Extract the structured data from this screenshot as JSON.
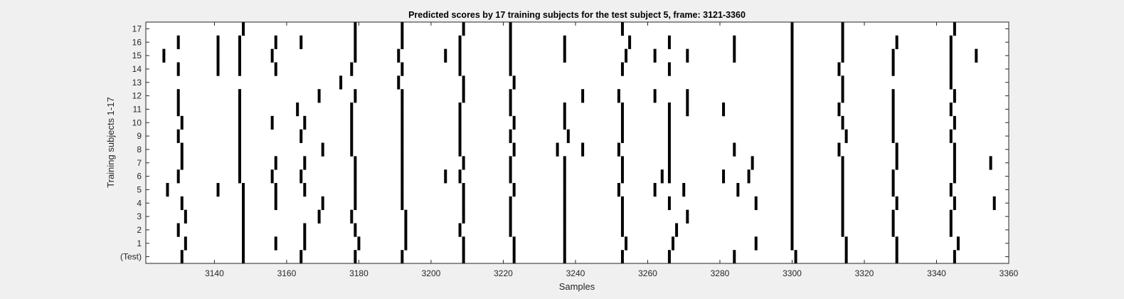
{
  "chart_data": {
    "type": "heatmap",
    "title": "Predicted scores by 17 training subjects for the test subject 5, frame: 3121-3360",
    "xlabel": "Samples",
    "ylabel": "Training subjects 1-17",
    "xlim": [
      3121,
      3360
    ],
    "x_ticks": [
      3140,
      3160,
      3180,
      3200,
      3220,
      3240,
      3260,
      3280,
      3300,
      3320,
      3340,
      3360
    ],
    "y_tick_labels": [
      "(Test)",
      "1",
      "2",
      "3",
      "4",
      "5",
      "6",
      "7",
      "8",
      "9",
      "10",
      "11",
      "12",
      "13",
      "14",
      "15",
      "16",
      "17"
    ],
    "rows": [
      {
        "label": "(Test)",
        "x": [
          3131,
          3148,
          3164,
          3179,
          3192,
          3209,
          3223,
          3237,
          3253,
          3266,
          3284,
          3301,
          3315,
          3329,
          3345
        ]
      },
      {
        "label": "1",
        "x": [
          3132,
          3148,
          3157,
          3165,
          3180,
          3193,
          3209,
          3223,
          3237,
          3254,
          3267,
          3290,
          3300,
          3315,
          3329,
          3346
        ]
      },
      {
        "label": "2",
        "x": [
          3130,
          3148,
          3165,
          3179,
          3193,
          3208,
          3222,
          3237,
          3253,
          3268,
          3300,
          3314,
          3328,
          3344
        ]
      },
      {
        "label": "3",
        "x": [
          3132,
          3148,
          3169,
          3178,
          3193,
          3209,
          3222,
          3237,
          3253,
          3271,
          3300,
          3314,
          3328,
          3344
        ]
      },
      {
        "label": "4",
        "x": [
          3131,
          3148,
          3157,
          3170,
          3179,
          3192,
          3209,
          3222,
          3237,
          3253,
          3266,
          3290,
          3300,
          3314,
          3329,
          3345,
          3356
        ]
      },
      {
        "label": "5",
        "x": [
          3127,
          3141,
          3148,
          3157,
          3165,
          3179,
          3192,
          3209,
          3223,
          3237,
          3252,
          3262,
          3270,
          3285,
          3300,
          3314,
          3328,
          3344
        ]
      },
      {
        "label": "6",
        "x": [
          3130,
          3147,
          3156,
          3164,
          3179,
          3192,
          3204,
          3208,
          3222,
          3237,
          3253,
          3264,
          3266,
          3281,
          3288,
          3300,
          3314,
          3328,
          3345
        ]
      },
      {
        "label": "7",
        "x": [
          3131,
          3147,
          3157,
          3165,
          3179,
          3192,
          3209,
          3222,
          3237,
          3253,
          3266,
          3289,
          3300,
          3314,
          3329,
          3345,
          3355
        ]
      },
      {
        "label": "8",
        "x": [
          3131,
          3147,
          3170,
          3178,
          3192,
          3208,
          3223,
          3235,
          3242,
          3252,
          3266,
          3284,
          3300,
          3313,
          3329,
          3345
        ]
      },
      {
        "label": "9",
        "x": [
          3130,
          3147,
          3164,
          3178,
          3192,
          3208,
          3222,
          3238,
          3253,
          3266,
          3300,
          3315,
          3328,
          3344
        ]
      },
      {
        "label": "10",
        "x": [
          3131,
          3147,
          3156,
          3165,
          3178,
          3192,
          3208,
          3223,
          3237,
          3253,
          3266,
          3300,
          3314,
          3328,
          3345
        ]
      },
      {
        "label": "11",
        "x": [
          3130,
          3147,
          3163,
          3178,
          3192,
          3208,
          3222,
          3237,
          3253,
          3266,
          3271,
          3281,
          3300,
          3313,
          3328,
          3344
        ]
      },
      {
        "label": "12",
        "x": [
          3130,
          3147,
          3169,
          3179,
          3192,
          3209,
          3222,
          3242,
          3252,
          3262,
          3271,
          3300,
          3314,
          3328,
          3345
        ]
      },
      {
        "label": "13",
        "x": [
          3175,
          3191,
          3209,
          3223,
          3300,
          3314,
          3344
        ]
      },
      {
        "label": "14",
        "x": [
          3130,
          3141,
          3147,
          3157,
          3178,
          3192,
          3208,
          3222,
          3253,
          3266,
          3300,
          3313,
          3328,
          3344
        ]
      },
      {
        "label": "15",
        "x": [
          3126,
          3141,
          3147,
          3156,
          3179,
          3191,
          3204,
          3208,
          3222,
          3237,
          3254,
          3262,
          3271,
          3284,
          3300,
          3314,
          3328,
          3344,
          3351
        ]
      },
      {
        "label": "16",
        "x": [
          3130,
          3141,
          3147,
          3157,
          3164,
          3179,
          3192,
          3208,
          3222,
          3237,
          3255,
          3266,
          3284,
          3300,
          3314,
          3329,
          3344
        ]
      },
      {
        "label": "17",
        "x": [
          3148,
          3179,
          3192,
          3209,
          3222,
          3253,
          3300,
          3314,
          3345
        ]
      }
    ],
    "grid": false,
    "colors": {
      "mark": "#000000",
      "plot_background": "#ffffff",
      "figure_background": "#f0f0f0",
      "axis": "#262626"
    }
  }
}
